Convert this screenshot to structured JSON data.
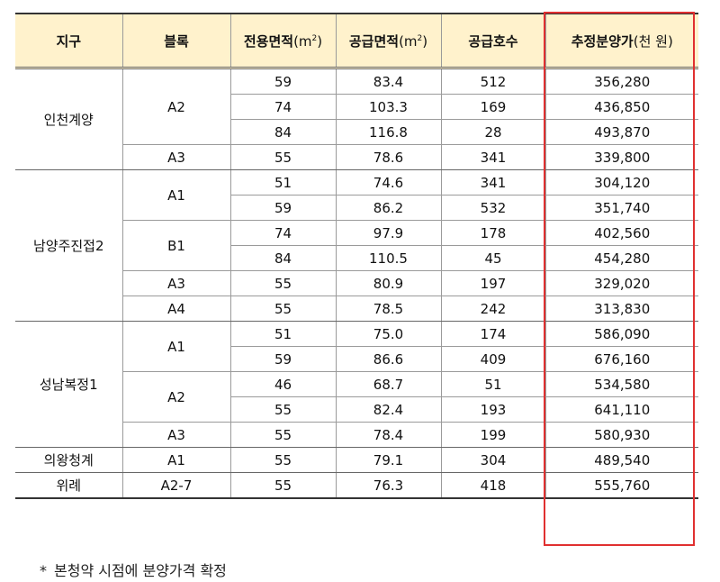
{
  "headers": {
    "district": "지구",
    "block": "블록",
    "exclusive_area": "전용면적",
    "supply_area": "공급면적",
    "area_unit_open": "(m",
    "area_unit_sup": "2",
    "area_unit_close": ")",
    "units": "공급호수",
    "price_main": "추정분양가",
    "price_unit": "(천 원)"
  },
  "districts": [
    {
      "name": "인천계양",
      "blocks": [
        {
          "name": "A2",
          "rows": [
            {
              "exclusive": "59",
              "supply": "83.4",
              "units": "512",
              "price": "356,280"
            },
            {
              "exclusive": "74",
              "supply": "103.3",
              "units": "169",
              "price": "436,850"
            },
            {
              "exclusive": "84",
              "supply": "116.8",
              "units": "28",
              "price": "493,870"
            }
          ]
        },
        {
          "name": "A3",
          "rows": [
            {
              "exclusive": "55",
              "supply": "78.6",
              "units": "341",
              "price": "339,800"
            }
          ]
        }
      ]
    },
    {
      "name": "남양주진접2",
      "blocks": [
        {
          "name": "A1",
          "rows": [
            {
              "exclusive": "51",
              "supply": "74.6",
              "units": "341",
              "price": "304,120"
            },
            {
              "exclusive": "59",
              "supply": "86.2",
              "units": "532",
              "price": "351,740"
            }
          ]
        },
        {
          "name": "B1",
          "rows": [
            {
              "exclusive": "74",
              "supply": "97.9",
              "units": "178",
              "price": "402,560"
            },
            {
              "exclusive": "84",
              "supply": "110.5",
              "units": "45",
              "price": "454,280"
            }
          ]
        },
        {
          "name": "A3",
          "rows": [
            {
              "exclusive": "55",
              "supply": "80.9",
              "units": "197",
              "price": "329,020"
            }
          ]
        },
        {
          "name": "A4",
          "rows": [
            {
              "exclusive": "55",
              "supply": "78.5",
              "units": "242",
              "price": "313,830"
            }
          ]
        }
      ]
    },
    {
      "name": "성남복정1",
      "blocks": [
        {
          "name": "A1",
          "rows": [
            {
              "exclusive": "51",
              "supply": "75.0",
              "units": "174",
              "price": "586,090"
            },
            {
              "exclusive": "59",
              "supply": "86.6",
              "units": "409",
              "price": "676,160"
            }
          ]
        },
        {
          "name": "A2",
          "rows": [
            {
              "exclusive": "46",
              "supply": "68.7",
              "units": "51",
              "price": "534,580"
            },
            {
              "exclusive": "55",
              "supply": "82.4",
              "units": "193",
              "price": "641,110"
            }
          ]
        },
        {
          "name": "A3",
          "rows": [
            {
              "exclusive": "55",
              "supply": "78.4",
              "units": "199",
              "price": "580,930"
            }
          ]
        }
      ]
    },
    {
      "name": "의왕청계",
      "blocks": [
        {
          "name": "A1",
          "rows": [
            {
              "exclusive": "55",
              "supply": "79.1",
              "units": "304",
              "price": "489,540"
            }
          ]
        }
      ]
    },
    {
      "name": "위례",
      "blocks": [
        {
          "name": "A2-7",
          "rows": [
            {
              "exclusive": "55",
              "supply": "76.3",
              "units": "418",
              "price": "555,760"
            }
          ]
        }
      ]
    }
  ],
  "footnote": {
    "marker": "*",
    "text": "본청약 시점에 분양가격 확정"
  },
  "colors": {
    "header_bg": "#fff2cc",
    "highlight_border": "#e03030"
  }
}
